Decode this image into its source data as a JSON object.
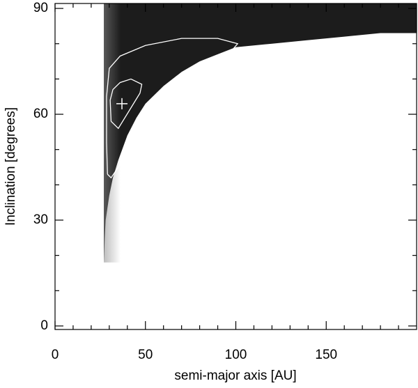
{
  "chart_data": {
    "type": "contour",
    "xlabel": "semi-major axis [AU]",
    "ylabel": "Inclination [degrees]",
    "xlim": [
      0,
      200
    ],
    "ylim": [
      -1,
      91.4
    ],
    "xticks": [
      0,
      50,
      100,
      150
    ],
    "yticks": [
      0,
      30,
      60,
      90
    ],
    "xminorticks": [
      10,
      20,
      30,
      40,
      60,
      70,
      80,
      90,
      110,
      120,
      130,
      140,
      160,
      170,
      180,
      190
    ],
    "yminorticks": [
      10,
      20,
      40,
      50,
      70,
      80
    ],
    "region": {
      "color": "#1c1c1c",
      "x": [
        27,
        27.5,
        28,
        30,
        32,
        35,
        40,
        45,
        50,
        60,
        70,
        80,
        90,
        100,
        120,
        140,
        160,
        180,
        200,
        200,
        27
      ],
      "y": [
        18,
        25,
        30,
        37,
        42,
        47,
        54,
        59,
        63,
        68,
        72,
        75,
        77,
        79,
        80,
        81,
        82,
        83,
        83,
        91.4,
        91.4
      ]
    },
    "contours": [
      {
        "color": "#ffffff",
        "x": [
          29,
          28.5,
          28.5,
          30,
          36,
          50,
          70,
          90,
          101,
          96,
          80,
          65,
          52,
          42,
          35,
          31,
          29
        ],
        "y": [
          43,
          52,
          65,
          73,
          76.5,
          79.5,
          81.5,
          81.5,
          80,
          77,
          72,
          66,
          60,
          52,
          45,
          42,
          43
        ]
      },
      {
        "color": "#ffffff",
        "x": [
          31,
          30.5,
          32,
          36,
          42,
          48,
          47,
          41,
          35,
          31
        ],
        "y": [
          58,
          64,
          67,
          69,
          70,
          68.5,
          66,
          61,
          56,
          58
        ]
      }
    ],
    "best_fit": {
      "x": 37,
      "y": 63,
      "color": "#ffffff"
    }
  }
}
